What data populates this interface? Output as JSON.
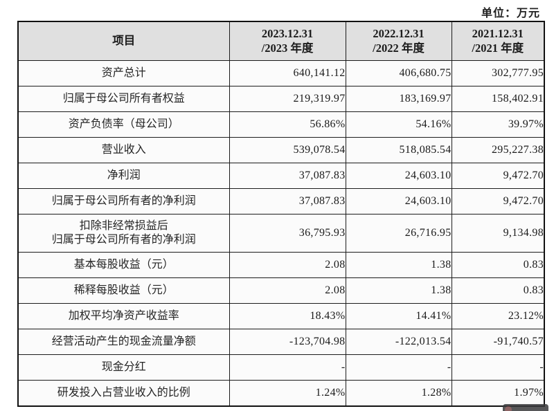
{
  "meta": {
    "unit_label": "单位：万元"
  },
  "colors": {
    "header_bg": "#e0e0e0",
    "row_bg": "#fbfbfb",
    "border": "#1b1b1b",
    "text": "#1c1c1c"
  },
  "table": {
    "header": {
      "item": "项目",
      "cols": [
        {
          "text": "2023.12.31\n/2023 年度"
        },
        {
          "text": "2022.12.31\n/2022 年度"
        },
        {
          "text": "2021.12.31\n/2021 年度"
        }
      ]
    },
    "rows": [
      {
        "label": "资产总计",
        "values": [
          "640,141.12",
          "406,680.75",
          "302,777.95"
        ],
        "tall": false
      },
      {
        "label": "归属于母公司所有者权益",
        "values": [
          "219,319.97",
          "183,169.97",
          "158,402.91"
        ],
        "tall": false
      },
      {
        "label": "资产负债率（母公司）",
        "values": [
          "56.86%",
          "54.16%",
          "39.97%"
        ],
        "tall": false
      },
      {
        "label": "营业收入",
        "values": [
          "539,078.54",
          "518,085.54",
          "295,227.38"
        ],
        "tall": false
      },
      {
        "label": "净利润",
        "values": [
          "37,087.83",
          "24,603.10",
          "9,472.70"
        ],
        "tall": false
      },
      {
        "label": "归属于母公司所有者的净利润",
        "values": [
          "37,087.83",
          "24,603.10",
          "9,472.70"
        ],
        "tall": false
      },
      {
        "label": "扣除非经常损益后\n归属于母公司所有者的净利润",
        "values": [
          "36,795.93",
          "26,716.95",
          "9,134.98"
        ],
        "tall": true
      },
      {
        "label": "基本每股收益（元）",
        "values": [
          "2.08",
          "1.38",
          "0.83"
        ],
        "tall": false
      },
      {
        "label": "稀释每股收益（元）",
        "values": [
          "2.08",
          "1.38",
          "0.83"
        ],
        "tall": false
      },
      {
        "label": "加权平均净资产收益率",
        "values": [
          "18.43%",
          "14.41%",
          "23.12%"
        ],
        "tall": false
      },
      {
        "label": "经营活动产生的现金流量净额",
        "values": [
          "-123,704.98",
          "-122,013.54",
          "-91,740.57"
        ],
        "tall": false
      },
      {
        "label": "现金分红",
        "values": [
          "-",
          "-",
          "-"
        ],
        "tall": false
      },
      {
        "label": "研发投入占营业收入的比例",
        "values": [
          "1.24%",
          "1.28%",
          "1.97%"
        ],
        "tall": false
      }
    ]
  }
}
